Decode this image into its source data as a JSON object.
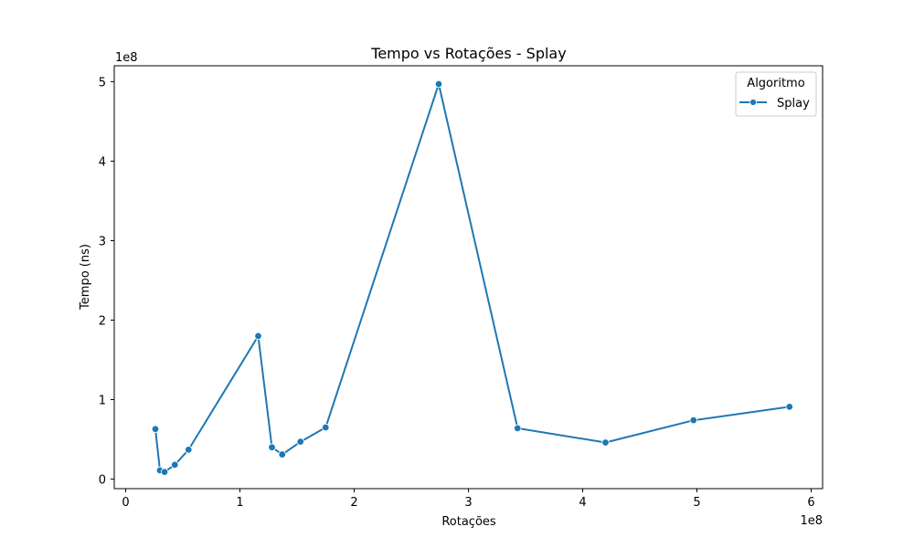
{
  "chart_data": {
    "type": "line",
    "title": "Tempo vs Rotações - Splay",
    "xlabel": "Rotações",
    "ylabel": "Tempo (ns)",
    "x_offset_text": "1e8",
    "y_offset_text": "1e8",
    "xlim": [
      -0.1,
      6.1
    ],
    "ylim": [
      -0.12,
      5.2
    ],
    "x_ticks": [
      0,
      1,
      2,
      3,
      4,
      5,
      6
    ],
    "x_tick_labels": [
      "0",
      "1",
      "2",
      "3",
      "4",
      "5",
      "6"
    ],
    "y_ticks": [
      0,
      1,
      2,
      3,
      4,
      5
    ],
    "y_tick_labels": [
      "0",
      "1",
      "2",
      "3",
      "4",
      "5"
    ],
    "grid": false,
    "legend": {
      "title": "Algoritmo",
      "position": "top-right"
    },
    "series": [
      {
        "name": "Splay",
        "color": "#1f77b4",
        "marker": "circle",
        "x": [
          0.26,
          0.3,
          0.34,
          0.43,
          0.55,
          1.16,
          1.28,
          1.37,
          1.53,
          1.75,
          2.74,
          3.43,
          4.2,
          4.97,
          5.81
        ],
        "y": [
          0.63,
          0.11,
          0.09,
          0.18,
          0.37,
          1.8,
          0.4,
          0.31,
          0.47,
          0.65,
          4.97,
          0.64,
          0.46,
          0.74,
          0.91
        ]
      }
    ]
  }
}
